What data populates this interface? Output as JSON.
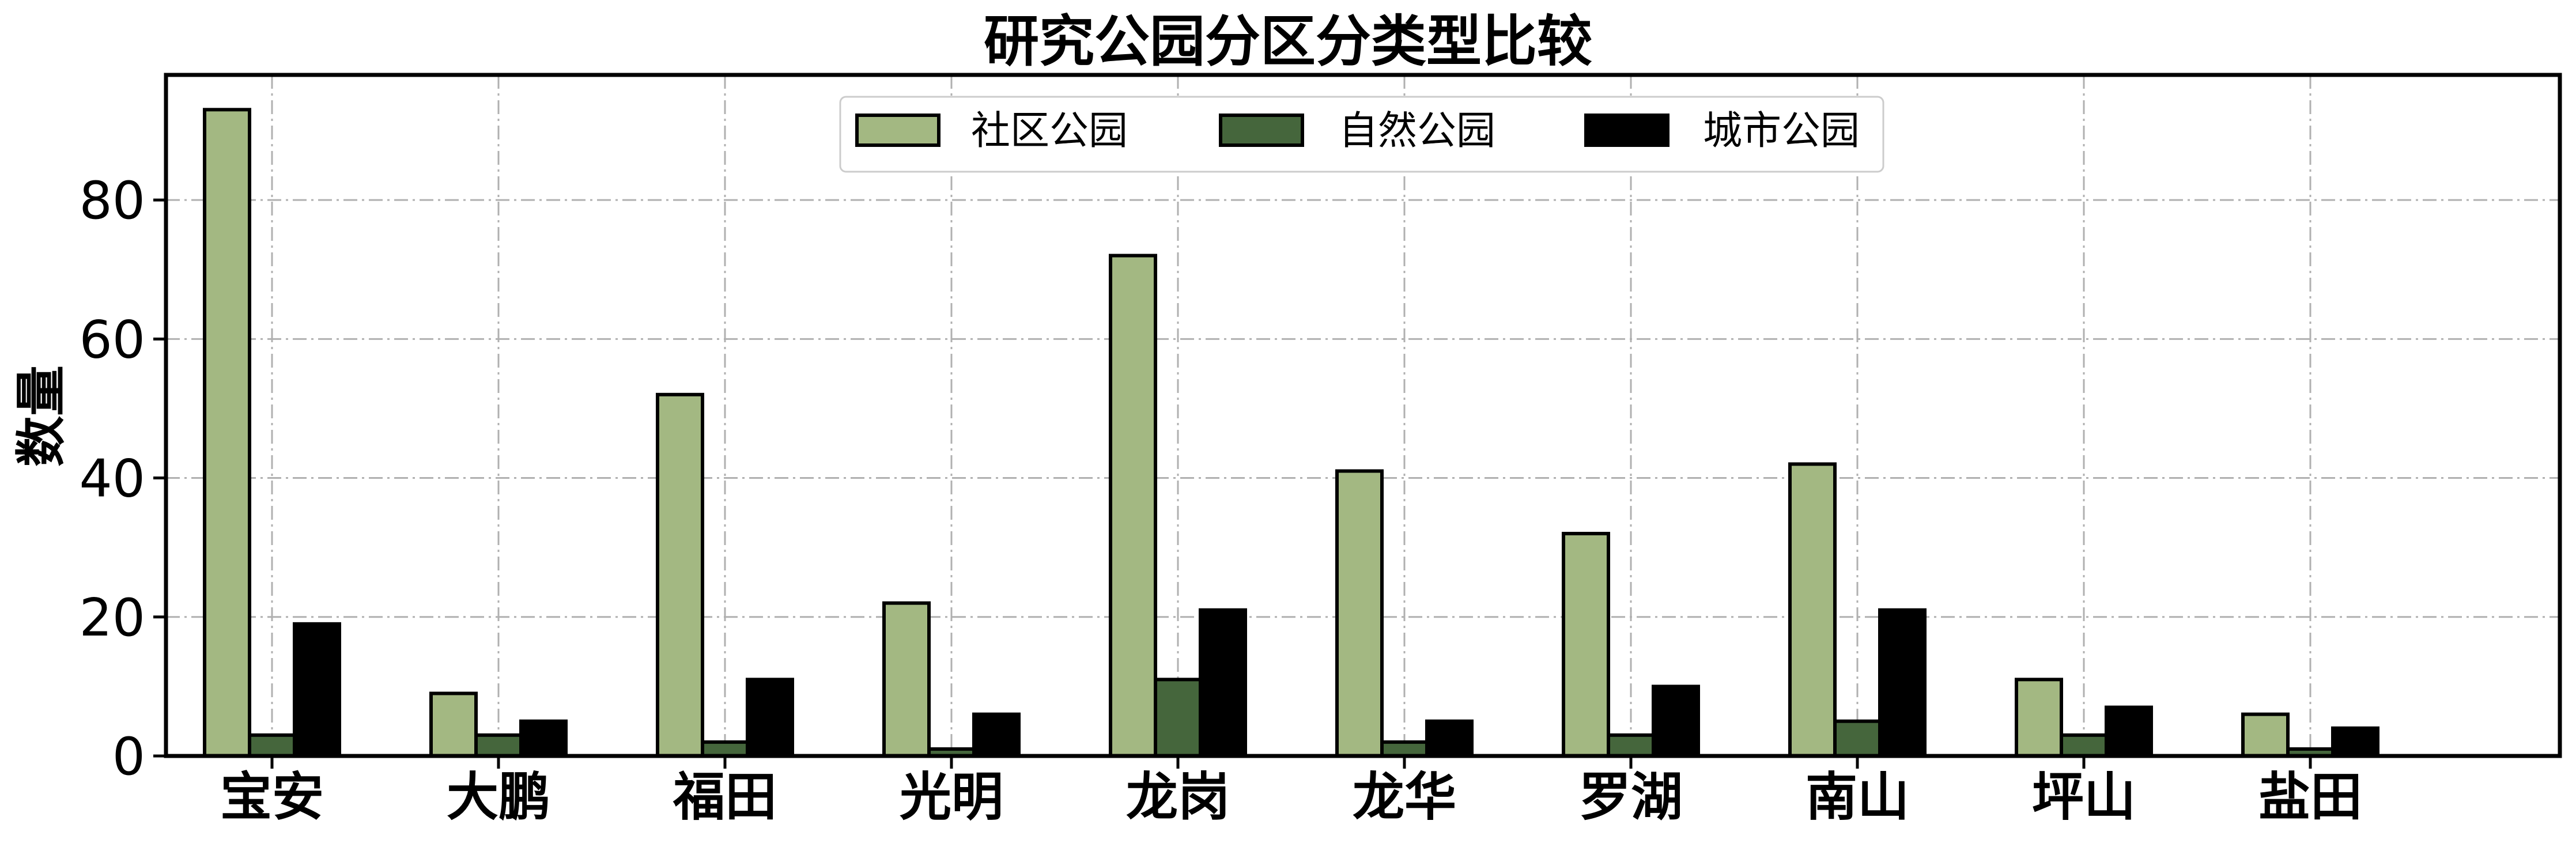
{
  "chart_data": {
    "type": "bar",
    "title": "研究公园分区分类型比较",
    "xlabel": "",
    "ylabel": "数量",
    "ylim": [
      0,
      98
    ],
    "yticks": [
      0,
      20,
      40,
      60,
      80
    ],
    "grid": true,
    "legend_position": "top-center",
    "categories": [
      "宝安",
      "大鹏",
      "福田",
      "光明",
      "龙岗",
      "龙华",
      "罗湖",
      "南山",
      "坪山",
      "盐田"
    ],
    "series": [
      {
        "name": "社区公园",
        "color": "#a3b882",
        "values": [
          93,
          9,
          52,
          22,
          72,
          41,
          32,
          42,
          11,
          6
        ]
      },
      {
        "name": "自然公园",
        "color": "#45663c",
        "values": [
          3,
          3,
          2,
          1,
          11,
          2,
          3,
          5,
          3,
          1
        ]
      },
      {
        "name": "城市公园",
        "color": "#000000",
        "values": [
          19,
          5,
          11,
          6,
          21,
          5,
          10,
          21,
          7,
          4
        ]
      }
    ]
  }
}
